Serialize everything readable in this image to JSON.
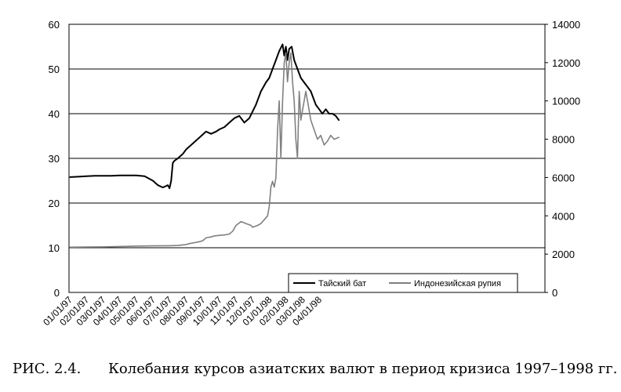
{
  "caption": {
    "label": "РИС. 2.4.",
    "text": "Колебания курсов азиатских валют в период кризиса 1997–1998 гг."
  },
  "chart_data": {
    "type": "line",
    "title": "",
    "xlabel": "",
    "ylabel_left": "",
    "ylabel_right": "",
    "x_ticks": [
      "01/01/97",
      "02/01/97",
      "03/01/97",
      "04/01/97",
      "05/01/97",
      "06/01/97",
      "07/01/97",
      "08/01/97",
      "09/01/97",
      "10/01/97",
      "11/01/97",
      "12/01/97",
      "01/01/98",
      "02/01/98",
      "03/01/98",
      "04/01/98"
    ],
    "y_left": {
      "range": [
        0,
        60
      ],
      "ticks": [
        "0",
        "10",
        "20",
        "30",
        "40",
        "50",
        "60"
      ]
    },
    "y_right": {
      "range": [
        0,
        14000
      ],
      "ticks": [
        "0",
        "2000",
        "4000",
        "6000",
        "8000",
        "10000",
        "12000",
        "14000"
      ]
    },
    "gridlines": "horizontal",
    "legend_position": "bottom-right",
    "colors": {
      "thai": "#000000",
      "indo": "#808080"
    },
    "series": [
      {
        "name": "Тайский бат",
        "axis": "left",
        "x": [
          0,
          0.5,
          1,
          1.5,
          2,
          2.5,
          3,
          3.5,
          4,
          4.5,
          5,
          5.3,
          5.6,
          5.9,
          6.0,
          6.1,
          6.2,
          6.3,
          6.5,
          6.8,
          7,
          7.3,
          7.6,
          7.9,
          8.2,
          8.5,
          8.8,
          9,
          9.3,
          9.6,
          9.9,
          10.2,
          10.5,
          10.8,
          11,
          11.2,
          11.5,
          11.8,
          12,
          12.2,
          12.4,
          12.6,
          12.8,
          12.9,
          13.0,
          13.1,
          13.2,
          13.35,
          13.5,
          13.7,
          13.9,
          14.1,
          14.3,
          14.5,
          14.8,
          15,
          15.2,
          15.4,
          15.6,
          15.8,
          16.0,
          16.2
        ],
        "values": [
          25.8,
          25.9,
          26.0,
          26.1,
          26.1,
          26.1,
          26.2,
          26.2,
          26.2,
          26.0,
          25.0,
          24.0,
          23.5,
          24.0,
          23.3,
          25.0,
          29.0,
          29.5,
          30.0,
          31.0,
          32.0,
          33.0,
          34.0,
          35.0,
          36.0,
          35.5,
          36.0,
          36.5,
          37.0,
          38.0,
          39.0,
          39.5,
          38.0,
          39.0,
          40.5,
          42.0,
          45.0,
          47.0,
          48.0,
          50.0,
          52.0,
          54.0,
          55.5,
          53.0,
          55.0,
          52.0,
          54.5,
          55.0,
          52.0,
          50.0,
          48.0,
          47.0,
          46.0,
          45.0,
          42.0,
          41.0,
          40.0,
          41.0,
          40.0,
          40.0,
          39.5,
          38.5
        ]
      },
      {
        "name": "Индонезийская рупия",
        "axis": "right",
        "x": [
          0,
          1,
          2,
          3,
          4,
          5,
          6,
          6.5,
          7,
          7.2,
          7.5,
          7.8,
          8,
          8.2,
          8.5,
          8.7,
          9,
          9.3,
          9.6,
          9.8,
          10,
          10.3,
          10.6,
          10.9,
          11,
          11.3,
          11.5,
          11.7,
          11.9,
          12,
          12.1,
          12.2,
          12.3,
          12.4,
          12.5,
          12.6,
          12.7,
          12.8,
          12.9,
          13.0,
          13.1,
          13.2,
          13.3,
          13.4,
          13.5,
          13.6,
          13.7,
          13.8,
          13.9,
          14.0,
          14.1,
          14.2,
          14.3,
          14.5,
          14.7,
          14.9,
          15.1,
          15.3,
          15.5,
          15.7,
          15.9,
          16.2
        ],
        "values": [
          2360,
          2370,
          2380,
          2400,
          2420,
          2430,
          2440,
          2450,
          2500,
          2550,
          2600,
          2650,
          2700,
          2850,
          2900,
          2950,
          2980,
          3000,
          3050,
          3200,
          3500,
          3700,
          3600,
          3500,
          3400,
          3500,
          3600,
          3800,
          4000,
          4500,
          5500,
          5800,
          5500,
          6000,
          8500,
          10000,
          7000,
          10000,
          12000,
          12500,
          11000,
          12000,
          12500,
          11000,
          10000,
          8000,
          7000,
          10500,
          9000,
          9500,
          10000,
          10500,
          10000,
          9000,
          8500,
          8000,
          8200,
          7700,
          7900,
          8200,
          8000,
          8100
        ]
      }
    ]
  }
}
